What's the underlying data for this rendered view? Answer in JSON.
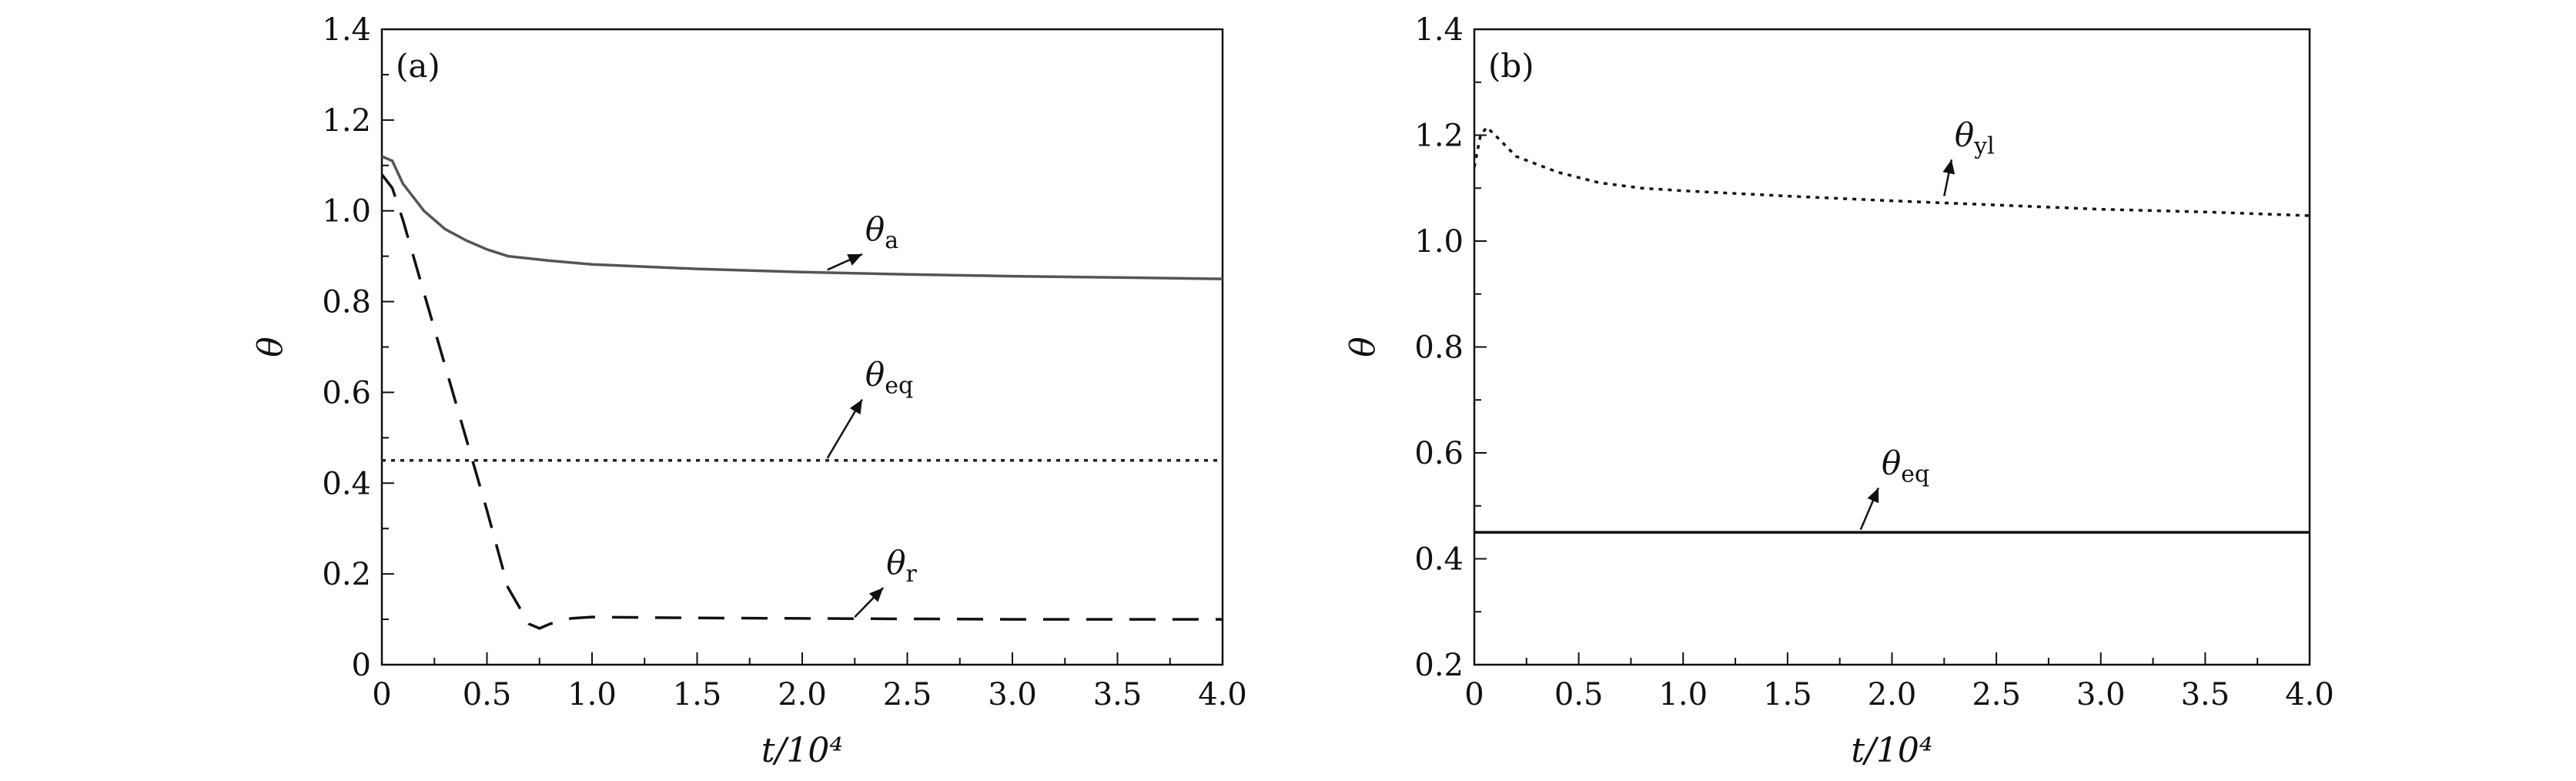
{
  "chart_data": [
    {
      "type": "line",
      "panel_label": "(a)",
      "xlabel": "t/10⁴",
      "ylabel": "θ",
      "xlim": [
        0,
        4.0
      ],
      "ylim": [
        0,
        1.4
      ],
      "xticks": [
        "0",
        "0.5",
        "1.0",
        "1.5",
        "2.0",
        "2.5",
        "3.0",
        "3.5",
        "4.0"
      ],
      "yticks": [
        "0",
        "0.2",
        "0.4",
        "0.6",
        "0.8",
        "1.0",
        "1.2",
        "1.4"
      ],
      "grid": false,
      "series": [
        {
          "name": "θa",
          "style": "solid",
          "color": "#555555",
          "x": [
            0,
            0.05,
            0.1,
            0.2,
            0.3,
            0.4,
            0.5,
            0.6,
            0.8,
            1.0,
            1.5,
            2.0,
            2.5,
            3.0,
            3.5,
            4.0
          ],
          "y": [
            1.12,
            1.11,
            1.06,
            1.0,
            0.96,
            0.935,
            0.915,
            0.9,
            0.89,
            0.882,
            0.872,
            0.865,
            0.86,
            0.856,
            0.853,
            0.85
          ]
        },
        {
          "name": "θeq",
          "style": "dotted",
          "color": "#222222",
          "x": [
            0,
            4.0
          ],
          "y": [
            0.45,
            0.45
          ]
        },
        {
          "name": "θr",
          "style": "dashed",
          "color": "#111111",
          "x": [
            0,
            0.05,
            0.1,
            0.2,
            0.3,
            0.4,
            0.5,
            0.6,
            0.7,
            0.75,
            0.8,
            0.9,
            1.0,
            1.5,
            2.0,
            2.5,
            3.0,
            3.5,
            4.0
          ],
          "y": [
            1.08,
            1.05,
            0.98,
            0.82,
            0.66,
            0.5,
            0.34,
            0.17,
            0.09,
            0.08,
            0.09,
            0.102,
            0.105,
            0.103,
            0.102,
            0.101,
            0.1,
            0.1,
            0.1
          ]
        }
      ],
      "annotations": [
        {
          "base": "θ",
          "sub": "a",
          "x": 2.3,
          "y": 0.935,
          "arrow_to": [
            2.12,
            0.87
          ]
        },
        {
          "base": "θ",
          "sub": "eq",
          "x": 2.3,
          "y": 0.615,
          "arrow_to": [
            2.12,
            0.455
          ]
        },
        {
          "base": "θ",
          "sub": "r",
          "x": 2.4,
          "y": 0.2,
          "arrow_to": [
            2.25,
            0.105
          ]
        }
      ]
    },
    {
      "type": "line",
      "panel_label": "(b)",
      "xlabel": "t/10⁴",
      "ylabel": "θ",
      "xlim": [
        0,
        4.0
      ],
      "ylim": [
        0.2,
        1.4
      ],
      "xticks": [
        "0",
        "0.5",
        "1.0",
        "1.5",
        "2.0",
        "2.5",
        "3.0",
        "3.5",
        "4.0"
      ],
      "yticks": [
        "0.2",
        "0.4",
        "0.6",
        "0.8",
        "1.0",
        "1.2",
        "1.4"
      ],
      "grid": false,
      "series": [
        {
          "name": "θyl",
          "style": "dotted",
          "color": "#111111",
          "x": [
            0,
            0.03,
            0.06,
            0.1,
            0.2,
            0.4,
            0.6,
            0.8,
            1.0,
            1.5,
            2.0,
            2.5,
            3.0,
            3.5,
            4.0
          ],
          "y": [
            1.14,
            1.2,
            1.215,
            1.2,
            1.16,
            1.13,
            1.11,
            1.1,
            1.095,
            1.085,
            1.076,
            1.068,
            1.06,
            1.055,
            1.048
          ]
        },
        {
          "name": "θeq",
          "style": "solid",
          "color": "#111111",
          "x": [
            0,
            4.0
          ],
          "y": [
            0.45,
            0.45
          ]
        }
      ],
      "annotations": [
        {
          "base": "θ",
          "sub": "yl",
          "x": 2.3,
          "y": 1.18,
          "arrow_to": [
            2.25,
            1.085
          ]
        },
        {
          "base": "θ",
          "sub": "eq",
          "x": 1.95,
          "y": 0.56,
          "arrow_to": [
            1.85,
            0.455
          ]
        }
      ]
    }
  ]
}
